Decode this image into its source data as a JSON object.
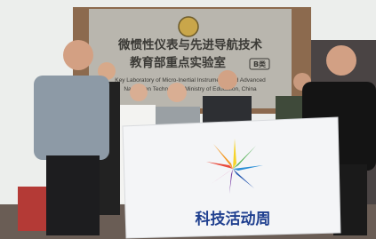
{
  "sign": {
    "line1": "微惯性仪表与先进导航技术",
    "line2": "教育部重点实验室",
    "tag": "B类",
    "english1": "Key Laboratory of Micro-Inertial Instruments and Advanced",
    "english2": "Navigation Technology, Ministry of Education, China"
  },
  "banner": {
    "text": "科技活动周"
  }
}
